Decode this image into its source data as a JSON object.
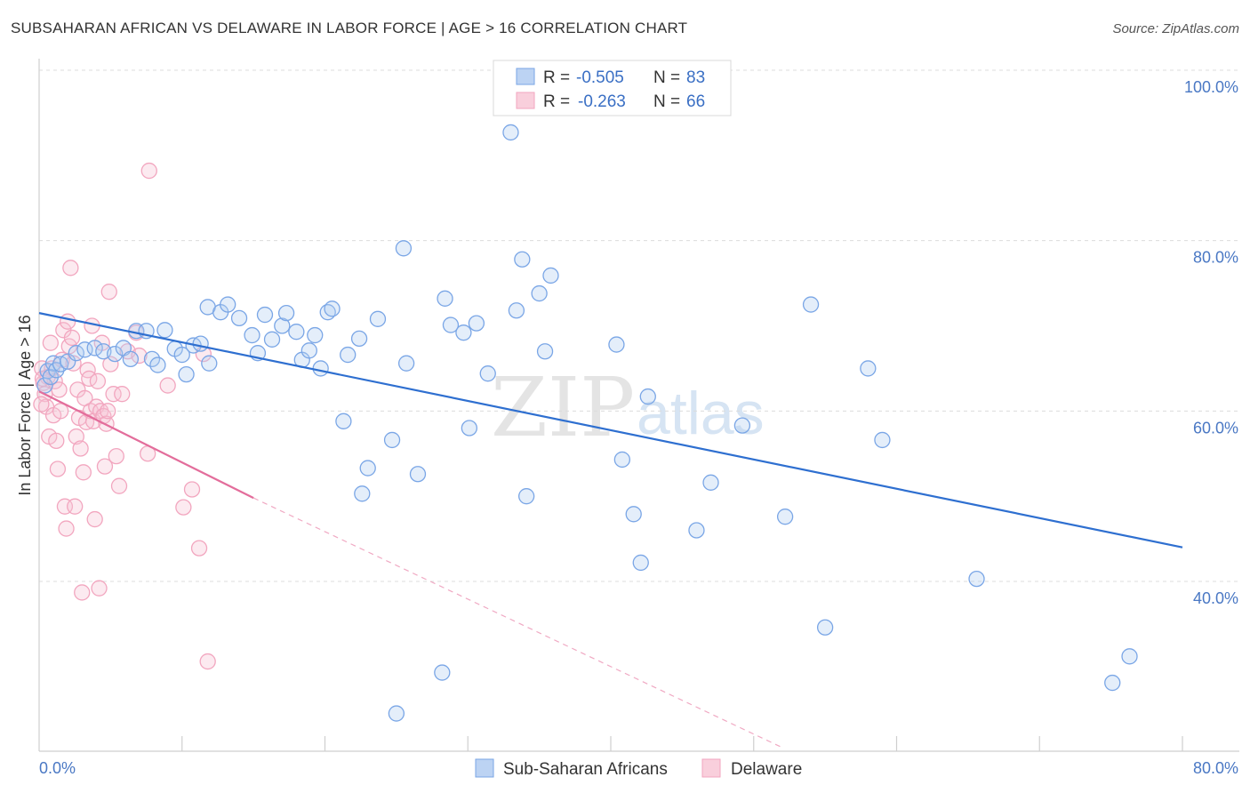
{
  "title": "SUBSAHARAN AFRICAN VS DELAWARE IN LABOR FORCE | AGE > 16 CORRELATION CHART",
  "source": "Source: ZipAtlas.com",
  "watermark": {
    "zip": "ZIP",
    "atlas": "atlas"
  },
  "chart_data": {
    "type": "scatter",
    "title": "SUBSAHARAN AFRICAN VS DELAWARE IN LABOR FORCE | AGE > 16 CORRELATION CHART",
    "xlabel": "",
    "ylabel": "In Labor Force | Age > 16",
    "xlim": [
      0,
      80
    ],
    "ylim": [
      20,
      100
    ],
    "x_tick_labels": {
      "left": "0.0%",
      "right": "80.0%"
    },
    "y_ticks": [
      {
        "value": 100,
        "label": "100.0%"
      },
      {
        "value": 80,
        "label": "80.0%"
      },
      {
        "value": 60,
        "label": "60.0%"
      },
      {
        "value": 40,
        "label": "40.0%"
      }
    ],
    "grid": "horizontal dashed",
    "legend": {
      "position": "top-center",
      "rows": [
        {
          "r_label": "R =",
          "r_value": "-0.505",
          "n_label": "N =",
          "n_value": "83"
        },
        {
          "r_label": "R =",
          "r_value": "-0.263",
          "n_label": "N =",
          "n_value": "66"
        }
      ]
    },
    "series": [
      {
        "name": "Sub-Saharan Africans",
        "color": "#7aa6e6",
        "line_color": "#2e6fd0",
        "trend": {
          "x0": 0,
          "y0": 71.5,
          "x1": 80,
          "y1": 44.0
        },
        "points": [
          [
            0.4,
            63.0
          ],
          [
            0.6,
            64.7
          ],
          [
            0.8,
            64.0
          ],
          [
            1.0,
            65.6
          ],
          [
            1.2,
            64.8
          ],
          [
            1.5,
            65.5
          ],
          [
            2.0,
            65.8
          ],
          [
            2.6,
            66.8
          ],
          [
            3.2,
            67.2
          ],
          [
            3.9,
            67.4
          ],
          [
            4.5,
            67.0
          ],
          [
            5.3,
            66.7
          ],
          [
            5.9,
            67.4
          ],
          [
            6.4,
            66.1
          ],
          [
            6.8,
            69.4
          ],
          [
            7.5,
            69.4
          ],
          [
            7.9,
            66.1
          ],
          [
            8.3,
            65.4
          ],
          [
            8.8,
            69.5
          ],
          [
            9.5,
            67.3
          ],
          [
            10.0,
            66.6
          ],
          [
            10.3,
            64.3
          ],
          [
            10.8,
            67.7
          ],
          [
            11.3,
            67.9
          ],
          [
            11.9,
            65.6
          ],
          [
            11.8,
            72.2
          ],
          [
            12.7,
            71.6
          ],
          [
            13.2,
            72.5
          ],
          [
            14.0,
            70.9
          ],
          [
            14.9,
            68.9
          ],
          [
            15.3,
            66.8
          ],
          [
            15.8,
            71.3
          ],
          [
            16.3,
            68.4
          ],
          [
            17.0,
            70.0
          ],
          [
            17.3,
            71.5
          ],
          [
            18.0,
            69.3
          ],
          [
            18.4,
            66.0
          ],
          [
            18.9,
            67.1
          ],
          [
            19.3,
            68.9
          ],
          [
            19.7,
            65.0
          ],
          [
            20.2,
            71.6
          ],
          [
            20.5,
            72.0
          ],
          [
            21.3,
            58.8
          ],
          [
            21.6,
            66.6
          ],
          [
            22.4,
            68.5
          ],
          [
            22.6,
            50.3
          ],
          [
            23.0,
            53.3
          ],
          [
            23.7,
            70.8
          ],
          [
            24.7,
            56.6
          ],
          [
            25.5,
            79.1
          ],
          [
            25.7,
            65.6
          ],
          [
            26.5,
            52.6
          ],
          [
            28.4,
            73.2
          ],
          [
            28.2,
            29.3
          ],
          [
            28.8,
            70.1
          ],
          [
            29.7,
            69.2
          ],
          [
            30.1,
            58.0
          ],
          [
            30.6,
            70.3
          ],
          [
            31.4,
            64.4
          ],
          [
            33.0,
            92.7
          ],
          [
            33.4,
            71.8
          ],
          [
            33.8,
            77.8
          ],
          [
            34.1,
            50.0
          ],
          [
            35.0,
            73.8
          ],
          [
            35.4,
            67.0
          ],
          [
            35.8,
            75.9
          ],
          [
            25.0,
            24.5
          ],
          [
            40.4,
            67.8
          ],
          [
            40.8,
            54.3
          ],
          [
            41.6,
            47.9
          ],
          [
            42.1,
            42.2
          ],
          [
            42.6,
            61.7
          ],
          [
            46.0,
            46.0
          ],
          [
            47.0,
            51.6
          ],
          [
            49.2,
            58.3
          ],
          [
            52.2,
            47.6
          ],
          [
            54.0,
            72.5
          ],
          [
            55.0,
            34.6
          ],
          [
            58.0,
            65.0
          ],
          [
            59.0,
            56.6
          ],
          [
            65.6,
            40.3
          ],
          [
            75.1,
            28.1
          ],
          [
            76.3,
            31.2
          ]
        ]
      },
      {
        "name": "Delaware",
        "color": "#f2a6bf",
        "line_color": "#e36d9b",
        "trend": {
          "x0": 0,
          "y0": 62.3,
          "x1": 15,
          "y1": 49.8
        },
        "trend_dashed": {
          "x0": 15,
          "y0": 49.8,
          "x1": 52,
          "y1": 20.5
        },
        "points": [
          [
            0.2,
            65.0
          ],
          [
            0.3,
            63.3
          ],
          [
            0.4,
            62.0
          ],
          [
            0.5,
            60.5
          ],
          [
            0.6,
            64.0
          ],
          [
            0.7,
            57.0
          ],
          [
            0.8,
            68.0
          ],
          [
            0.9,
            65.0
          ],
          [
            1.0,
            59.5
          ],
          [
            1.1,
            63.5
          ],
          [
            1.2,
            56.5
          ],
          [
            1.3,
            53.2
          ],
          [
            1.4,
            62.5
          ],
          [
            1.5,
            60.0
          ],
          [
            1.6,
            66.0
          ],
          [
            1.7,
            69.5
          ],
          [
            1.8,
            48.8
          ],
          [
            1.9,
            46.2
          ],
          [
            2.0,
            70.5
          ],
          [
            2.1,
            67.6
          ],
          [
            2.2,
            76.8
          ],
          [
            2.3,
            68.6
          ],
          [
            2.4,
            65.6
          ],
          [
            2.5,
            48.8
          ],
          [
            2.6,
            57.0
          ],
          [
            2.7,
            62.5
          ],
          [
            2.8,
            59.2
          ],
          [
            2.9,
            55.6
          ],
          [
            3.0,
            38.7
          ],
          [
            3.1,
            52.8
          ],
          [
            3.2,
            61.5
          ],
          [
            3.3,
            58.7
          ],
          [
            3.4,
            64.8
          ],
          [
            3.5,
            63.8
          ],
          [
            3.6,
            60.0
          ],
          [
            3.7,
            70.0
          ],
          [
            3.8,
            58.8
          ],
          [
            3.9,
            47.3
          ],
          [
            4.0,
            60.5
          ],
          [
            4.1,
            63.5
          ],
          [
            4.2,
            39.2
          ],
          [
            4.3,
            60.0
          ],
          [
            4.4,
            68.0
          ],
          [
            4.5,
            59.4
          ],
          [
            4.6,
            53.5
          ],
          [
            4.7,
            58.5
          ],
          [
            4.8,
            60.0
          ],
          [
            4.9,
            74.0
          ],
          [
            5.0,
            65.5
          ],
          [
            5.2,
            62.0
          ],
          [
            5.4,
            54.7
          ],
          [
            5.6,
            51.2
          ],
          [
            5.8,
            62.0
          ],
          [
            6.2,
            67.0
          ],
          [
            6.8,
            69.2
          ],
          [
            7.0,
            66.5
          ],
          [
            7.6,
            55.0
          ],
          [
            7.7,
            88.2
          ],
          [
            9.0,
            63.0
          ],
          [
            10.1,
            48.7
          ],
          [
            10.7,
            50.8
          ],
          [
            11.2,
            43.9
          ],
          [
            11.5,
            66.7
          ],
          [
            11.8,
            30.6
          ],
          [
            0.15,
            60.8
          ],
          [
            0.25,
            63.8
          ]
        ]
      }
    ]
  }
}
